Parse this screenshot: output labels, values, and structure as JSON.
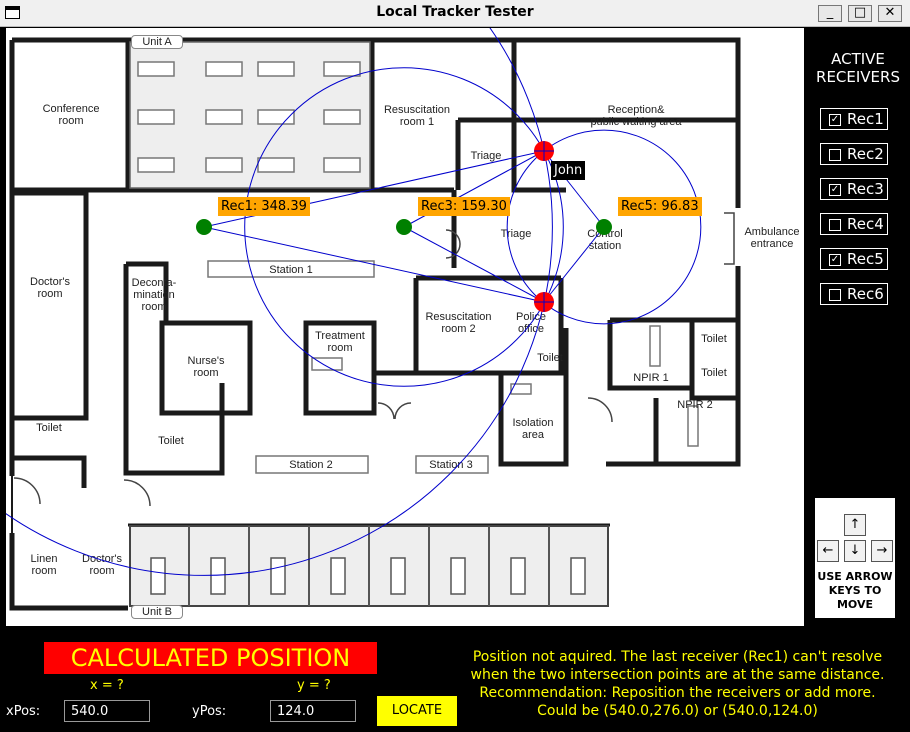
{
  "window": {
    "title": "Local Tracker Tester",
    "minimize_glyph": "_",
    "maximize_glyph": "□",
    "close_glyph": "✕"
  },
  "floorplan": {
    "rooms": {
      "unit_a": "Unit A",
      "conference": "Conference\nroom",
      "resus1": "Resuscitation\nroom 1",
      "reception": "Reception&\npublic waiting area",
      "triage_top": "Triage",
      "triage_mid": "Triage",
      "control": "Control\nstation",
      "ambulance": "Ambulance\nentrance",
      "doctors": "Doctor's\nroom",
      "decon": "Deconta-\nmination\nroom",
      "station1": "Station 1",
      "nurses": "Nurse's\nroom",
      "treatment": "Treatment\nroom",
      "resus2": "Resuscitation\nroom 2",
      "police": "Police\noffice",
      "toilet_police": "Toilet",
      "npir1": "NPIR 1",
      "toilet_r1": "Toilet",
      "toilet_r2": "Toilet",
      "npir2": "NPIR 2",
      "toilet_left": "Toilet",
      "toilet_nurse": "Toilet",
      "isolation": "Isolation area",
      "station2": "Station 2",
      "station3": "Station 3",
      "linen": "Linen\nroom",
      "doctors2": "Doctor's\nroom",
      "unit_b": "Unit B"
    }
  },
  "tracking": {
    "receivers": [
      {
        "name": "Rec1",
        "x": 204,
        "y": 227,
        "distance_label": "Rec1: 348.39"
      },
      {
        "name": "Rec3",
        "x": 404,
        "y": 227,
        "distance_label": "Rec3: 159.30"
      },
      {
        "name": "Rec5",
        "x": 604,
        "y": 227,
        "distance_label": "Rec5: 96.83"
      }
    ],
    "intersections": [
      {
        "x": 544,
        "y": 151
      },
      {
        "x": 544,
        "y": 302
      }
    ],
    "target": {
      "name": "John"
    },
    "colors": {
      "receiver": "#008000",
      "intersection": "#ff0000",
      "circle": "#0000cc",
      "label_bg": "#ffa500"
    }
  },
  "panel": {
    "title_line1": "ACTIVE",
    "title_line2": "RECEIVERS",
    "receivers": [
      {
        "label": "Rec1",
        "checked": true
      },
      {
        "label": "Rec2",
        "checked": false
      },
      {
        "label": "Rec3",
        "checked": true
      },
      {
        "label": "Rec4",
        "checked": false
      },
      {
        "label": "Rec5",
        "checked": true
      },
      {
        "label": "Rec6",
        "checked": false
      }
    ],
    "arrow_keys": {
      "up": "↑",
      "left": "←",
      "down": "↓",
      "right": "→"
    },
    "keys_hint_line1": "USE ARROW",
    "keys_hint_line2": "KEYS TO",
    "keys_hint_line3": "MOVE"
  },
  "bottom": {
    "calculated_position": "CALCULATED POSITION",
    "x_label": "x = ?",
    "y_label": "y = ?",
    "xpos_label": "xPos:",
    "xpos_value": "540.0",
    "ypos_label": "yPos:",
    "ypos_value": "124.0",
    "locate_button": "LOCATE",
    "message_lines": [
      "Position not aquired. The last receiver (Rec1) can't resolve",
      "when the two intersection points are at the same distance.",
      "Recommendation: Reposition the receivers or add more.",
      "Could be (540.0,276.0) or (540.0,124.0)"
    ]
  }
}
